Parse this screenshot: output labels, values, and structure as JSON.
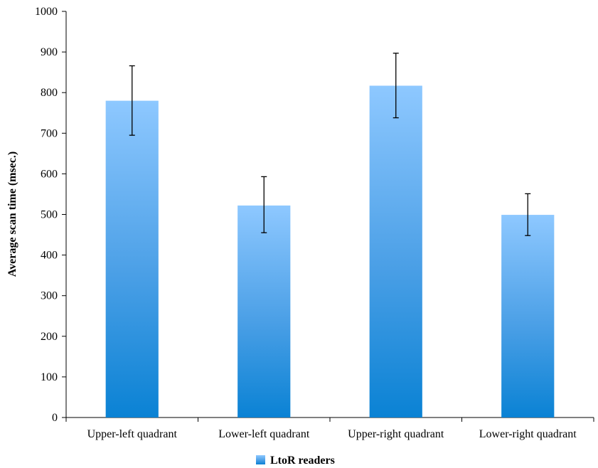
{
  "chart_data": {
    "type": "bar",
    "title": "",
    "xlabel": "",
    "ylabel": "Average scan time (msec.)",
    "ylim": [
      0,
      1000
    ],
    "ytick_step": 100,
    "categories": [
      "Upper-left quadrant",
      "Lower-left quadrant",
      "Upper-right quadrant",
      "Lower-right quadrant"
    ],
    "series": [
      {
        "name": "LtoR readers",
        "values": [
          780,
          522,
          817,
          499
        ],
        "error_low": [
          695,
          455,
          738,
          448
        ],
        "error_high": [
          866,
          593,
          897,
          551
        ]
      }
    ],
    "grid": false,
    "legend_position": "bottom",
    "colors": {
      "bar_top": "#8ec8ff",
      "bar_bottom": "#0a82d4",
      "axis": "#000000"
    }
  }
}
